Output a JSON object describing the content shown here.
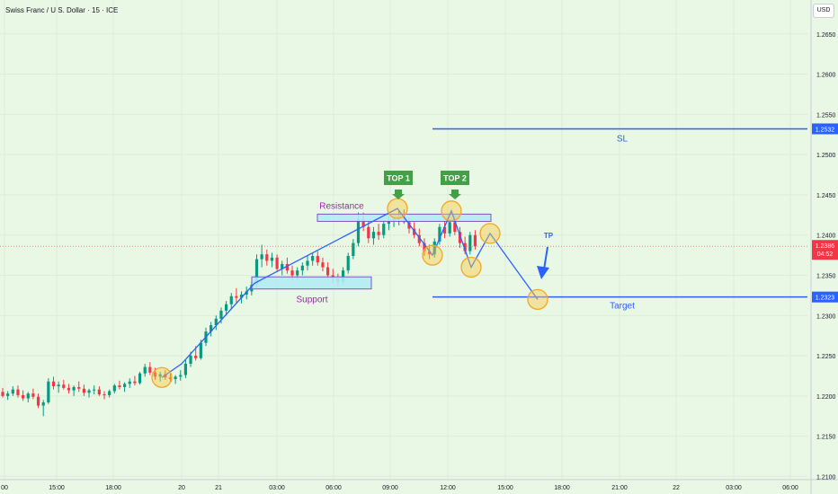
{
  "header": {
    "title": "Swiss Franc / U.S. Dollar · 15 · ICE",
    "currency": "USD"
  },
  "chart_data": {
    "type": "candlestick",
    "symbol": "Swiss Franc / U.S. Dollar",
    "interval": "15",
    "source": "ICE",
    "y_ticks": [
      "1.2650",
      "1.2600",
      "1.2550",
      "1.2500",
      "1.2450",
      "1.2400",
      "1.2350",
      "1.2300",
      "1.2250",
      "1.2200",
      "1.2150",
      "1.2100"
    ],
    "ylim": [
      1.2096,
      1.2681
    ],
    "x_ticks": [
      "00",
      "15:00",
      "18:00",
      "20",
      "21",
      "03:00",
      "06:00",
      "09:00",
      "12:00",
      "15:00",
      "18:00",
      "21:00",
      "22",
      "03:00",
      "06:00"
    ],
    "last_price": {
      "value": 1.2386,
      "label": "1.2386",
      "countdown": "04:52",
      "color": "#f23645"
    },
    "levels": [
      {
        "label": "SL",
        "value": 1.2532,
        "value_label": "1.2532",
        "color": "#2962ff"
      },
      {
        "label": "Target",
        "value": 1.2323,
        "value_label": "1.2323",
        "color": "#2962ff"
      }
    ],
    "zones": [
      {
        "label": "Resistance",
        "low": 1.2417,
        "high": 1.2426,
        "label_color": "#9c27b0"
      },
      {
        "label": "Support",
        "low": 1.2333,
        "high": 1.2348,
        "label_color": "#9c27b0"
      }
    ],
    "markers": [
      {
        "label": "TOP 1",
        "color": "#43a047"
      },
      {
        "label": "TOP 2",
        "color": "#43a047"
      },
      {
        "label": "TP",
        "color": "#2962ff"
      }
    ],
    "path_prices": [
      1.2223,
      1.224,
      1.234,
      1.2433,
      1.2375,
      1.243,
      1.236,
      1.2402,
      1.232
    ],
    "candles": [
      [
        1.2205,
        1.221,
        1.2198,
        1.22
      ],
      [
        1.22,
        1.2206,
        1.2195,
        1.2203
      ],
      [
        1.2203,
        1.2212,
        1.22,
        1.2208
      ],
      [
        1.2208,
        1.2213,
        1.2198,
        1.2201
      ],
      [
        1.2201,
        1.2207,
        1.2194,
        1.2197
      ],
      [
        1.2197,
        1.2205,
        1.2192,
        1.2203
      ],
      [
        1.2203,
        1.2209,
        1.2196,
        1.2199
      ],
      [
        1.2199,
        1.2203,
        1.2185,
        1.2188
      ],
      [
        1.2188,
        1.2195,
        1.2175,
        1.2192
      ],
      [
        1.2192,
        1.2222,
        1.219,
        1.2218
      ],
      [
        1.2218,
        1.2224,
        1.2208,
        1.2212
      ],
      [
        1.2212,
        1.2218,
        1.2204,
        1.2214
      ],
      [
        1.2214,
        1.222,
        1.2208,
        1.221
      ],
      [
        1.221,
        1.2215,
        1.2203,
        1.2207
      ],
      [
        1.2207,
        1.2213,
        1.22,
        1.2211
      ],
      [
        1.2211,
        1.2218,
        1.2205,
        1.2209
      ],
      [
        1.2209,
        1.2214,
        1.22,
        1.2204
      ],
      [
        1.2204,
        1.2209,
        1.2198,
        1.2207
      ],
      [
        1.2207,
        1.2213,
        1.2202,
        1.2208
      ],
      [
        1.2208,
        1.2212,
        1.22,
        1.2202
      ],
      [
        1.2202,
        1.2206,
        1.2196,
        1.2201
      ],
      [
        1.2201,
        1.2208,
        1.2198,
        1.2206
      ],
      [
        1.2206,
        1.2215,
        1.2203,
        1.2213
      ],
      [
        1.2213,
        1.2219,
        1.2208,
        1.2211
      ],
      [
        1.2211,
        1.2217,
        1.2205,
        1.2215
      ],
      [
        1.2215,
        1.2222,
        1.221,
        1.2218
      ],
      [
        1.2218,
        1.2225,
        1.2213,
        1.2216
      ],
      [
        1.2216,
        1.223,
        1.2214,
        1.2228
      ],
      [
        1.2228,
        1.224,
        1.2224,
        1.2236
      ],
      [
        1.2236,
        1.2242,
        1.2226,
        1.2229
      ],
      [
        1.2229,
        1.2235,
        1.222,
        1.2224
      ],
      [
        1.2224,
        1.223,
        1.2218,
        1.2227
      ],
      [
        1.2227,
        1.2232,
        1.222,
        1.2223
      ],
      [
        1.2223,
        1.2228,
        1.2217,
        1.2221
      ],
      [
        1.2221,
        1.2226,
        1.2215,
        1.2224
      ],
      [
        1.2224,
        1.2232,
        1.2219,
        1.2226
      ],
      [
        1.2226,
        1.2245,
        1.2222,
        1.224
      ],
      [
        1.224,
        1.2255,
        1.2236,
        1.225
      ],
      [
        1.225,
        1.2262,
        1.2244,
        1.2247
      ],
      [
        1.2247,
        1.227,
        1.2245,
        1.2266
      ],
      [
        1.2266,
        1.2285,
        1.2262,
        1.228
      ],
      [
        1.228,
        1.2292,
        1.2274,
        1.2288
      ],
      [
        1.2288,
        1.23,
        1.2282,
        1.2296
      ],
      [
        1.2296,
        1.231,
        1.229,
        1.2306
      ],
      [
        1.2306,
        1.2318,
        1.23,
        1.2314
      ],
      [
        1.2314,
        1.2328,
        1.2308,
        1.2324
      ],
      [
        1.2324,
        1.2334,
        1.2316,
        1.2322
      ],
      [
        1.2322,
        1.233,
        1.2315,
        1.2326
      ],
      [
        1.2326,
        1.2336,
        1.232,
        1.233
      ],
      [
        1.233,
        1.2342,
        1.2325,
        1.2338
      ],
      [
        1.2338,
        1.2376,
        1.2335,
        1.237
      ],
      [
        1.237,
        1.2388,
        1.236,
        1.2376
      ],
      [
        1.2376,
        1.2382,
        1.2362,
        1.2368
      ],
      [
        1.2368,
        1.2378,
        1.236,
        1.2372
      ],
      [
        1.2372,
        1.2376,
        1.2354,
        1.2358
      ],
      [
        1.2358,
        1.2368,
        1.235,
        1.2364
      ],
      [
        1.2364,
        1.2372,
        1.2352,
        1.2356
      ],
      [
        1.2356,
        1.2362,
        1.2345,
        1.235
      ],
      [
        1.235,
        1.236,
        1.2344,
        1.2356
      ],
      [
        1.2356,
        1.2366,
        1.235,
        1.2362
      ],
      [
        1.2362,
        1.2374,
        1.2356,
        1.2368
      ],
      [
        1.2368,
        1.2378,
        1.2362,
        1.2374
      ],
      [
        1.2374,
        1.238,
        1.2362,
        1.2366
      ],
      [
        1.2366,
        1.2372,
        1.2355,
        1.236
      ],
      [
        1.236,
        1.2366,
        1.2345,
        1.235
      ],
      [
        1.235,
        1.2358,
        1.234,
        1.2346
      ],
      [
        1.2346,
        1.2352,
        1.2336,
        1.2342
      ],
      [
        1.2342,
        1.236,
        1.2338,
        1.2356
      ],
      [
        1.2356,
        1.2378,
        1.2352,
        1.2374
      ],
      [
        1.2374,
        1.2395,
        1.237,
        1.239
      ],
      [
        1.239,
        1.2428,
        1.2386,
        1.242
      ],
      [
        1.242,
        1.2428,
        1.2405,
        1.241
      ],
      [
        1.241,
        1.2418,
        1.239,
        1.2396
      ],
      [
        1.2396,
        1.241,
        1.2388,
        1.2404
      ],
      [
        1.2404,
        1.2414,
        1.2394,
        1.24
      ],
      [
        1.24,
        1.2418,
        1.2396,
        1.2414
      ],
      [
        1.2414,
        1.2424,
        1.2406,
        1.2418
      ],
      [
        1.2418,
        1.2426,
        1.241,
        1.242
      ],
      [
        1.242,
        1.243,
        1.2412,
        1.2424
      ],
      [
        1.2424,
        1.2432,
        1.2414,
        1.2416
      ],
      [
        1.2416,
        1.2422,
        1.2402,
        1.2408
      ],
      [
        1.2408,
        1.2416,
        1.2396,
        1.24
      ],
      [
        1.24,
        1.2408,
        1.2386,
        1.239
      ],
      [
        1.239,
        1.2396,
        1.2374,
        1.238
      ],
      [
        1.238,
        1.2388,
        1.237,
        1.2376
      ],
      [
        1.2376,
        1.2396,
        1.2372,
        1.2392
      ],
      [
        1.2392,
        1.2414,
        1.2388,
        1.241
      ],
      [
        1.241,
        1.2418,
        1.2396,
        1.2402
      ],
      [
        1.2402,
        1.242,
        1.2398,
        1.2416
      ],
      [
        1.2416,
        1.2424,
        1.24,
        1.2404
      ],
      [
        1.2404,
        1.241,
        1.2384,
        1.239
      ],
      [
        1.239,
        1.2398,
        1.2376,
        1.238
      ],
      [
        1.238,
        1.2404,
        1.2376,
        1.24
      ],
      [
        1.24,
        1.2406,
        1.2382,
        1.2386
      ]
    ]
  }
}
